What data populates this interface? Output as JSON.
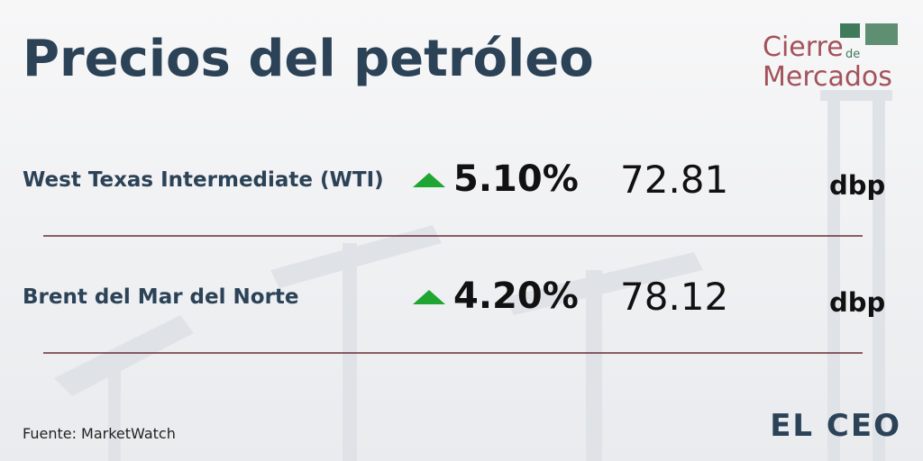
{
  "header": {
    "title": "Precios del petróleo"
  },
  "logo": {
    "line1": "Cierre",
    "small": "de",
    "line2": "Mercados"
  },
  "rows": [
    {
      "name": "West Texas Intermediate (WTI)",
      "change": "5.10%",
      "price": "72.81",
      "unit": "dbp"
    },
    {
      "name": "Brent del Mar del Norte",
      "change": "4.20%",
      "price": "78.12",
      "unit": "dbp"
    }
  ],
  "footer": {
    "source": "Fuente: MarketWatch",
    "brand": "EL CEO"
  }
}
